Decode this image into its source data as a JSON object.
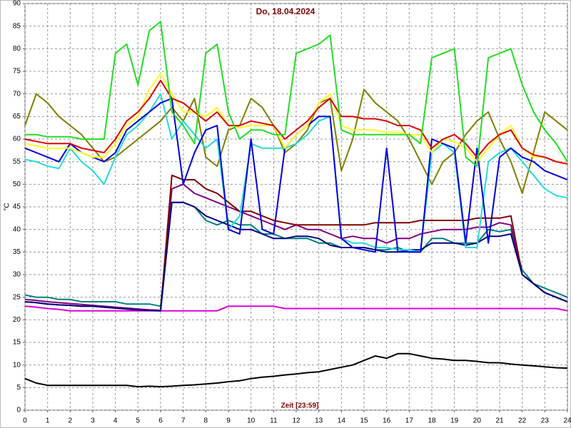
{
  "chart_data": {
    "type": "line",
    "title": "Do, 18.04.2024",
    "x_label": "Zeit [23:59]",
    "y_label": "°C",
    "grid": true,
    "xlim": [
      0,
      24
    ],
    "xticks": [
      0,
      1,
      2,
      3,
      4,
      5,
      6,
      7,
      8,
      9,
      10,
      11,
      12,
      13,
      14,
      15,
      16,
      17,
      18,
      19,
      20,
      21,
      22,
      23,
      24
    ],
    "ylim": [
      0,
      90
    ],
    "yticks": [
      0,
      5,
      10,
      15,
      20,
      25,
      30,
      35,
      40,
      45,
      50,
      55,
      60,
      65,
      70,
      75,
      80,
      85,
      90
    ],
    "x": [
      0,
      0.5,
      1,
      1.5,
      2,
      2.5,
      3,
      3.5,
      4,
      4.5,
      5,
      5.5,
      6,
      6.5,
      7,
      7.5,
      8,
      8.5,
      9,
      9.5,
      10,
      10.5,
      11,
      11.5,
      12,
      12.5,
      13,
      13.5,
      14,
      14.5,
      15,
      15.5,
      16,
      16.5,
      17,
      17.5,
      18,
      18.5,
      19,
      19.5,
      20,
      20.5,
      21,
      21.5,
      22,
      22.5,
      23,
      23.5,
      24
    ],
    "series": [
      {
        "color": "#000000",
        "values": [
          7,
          6,
          5.5,
          5.5,
          5.5,
          5.5,
          5.5,
          5.5,
          5.5,
          5.5,
          5.2,
          5.3,
          5.2,
          5.3,
          5.5,
          5.6,
          5.8,
          6,
          6.3,
          6.5,
          7,
          7.3,
          7.5,
          7.8,
          8,
          8.3,
          8.5,
          9,
          9.5,
          10,
          11,
          12,
          11.5,
          12.5,
          12.5,
          12,
          11.5,
          11.3,
          11,
          11,
          10.8,
          10.5,
          10.5,
          10.2,
          10,
          9.8,
          9.6,
          9.4,
          9.3
        ]
      },
      {
        "color": "#dd00dd",
        "values": [
          23,
          22.8,
          22.5,
          22.3,
          22,
          22,
          22,
          22,
          22,
          22,
          22,
          22,
          22,
          22,
          22,
          22,
          22,
          22,
          23,
          23,
          23,
          23,
          23,
          22.5,
          22.5,
          22.5,
          22.5,
          22.5,
          22.5,
          22.5,
          22.5,
          22.5,
          22.5,
          22.5,
          22.5,
          22.5,
          22.5,
          22.5,
          22.5,
          22.5,
          22.5,
          22.5,
          22.5,
          22.5,
          22.5,
          22.5,
          22.5,
          22.5,
          22
        ]
      },
      {
        "color": "#008080",
        "values": [
          25.5,
          25,
          25,
          24.5,
          24.5,
          24,
          24,
          24,
          24,
          23.5,
          23.5,
          23.5,
          23,
          46,
          46,
          45,
          42,
          41,
          42,
          41,
          41,
          39,
          39,
          38,
          38,
          38,
          37,
          37,
          36,
          36,
          36,
          35.5,
          35.5,
          36,
          35,
          35,
          38,
          38,
          37,
          37,
          37,
          40,
          39.5,
          40,
          31,
          28,
          27,
          26,
          25
        ]
      },
      {
        "color": "#800080",
        "values": [
          24.5,
          24.3,
          24,
          23.8,
          23.6,
          23.4,
          23.2,
          23,
          22.8,
          22.6,
          22.4,
          22.2,
          22.1,
          49,
          50,
          48,
          47,
          46,
          45,
          44,
          43,
          42,
          41,
          40,
          41,
          40,
          40,
          39,
          38,
          38.5,
          38,
          38,
          37,
          38,
          38,
          39,
          39.5,
          40,
          40,
          40,
          40.5,
          40.5,
          41.5,
          41,
          30,
          28,
          26,
          25,
          24
        ]
      },
      {
        "color": "#800000",
        "values": [
          24,
          23.8,
          23.5,
          23.3,
          23.2,
          23,
          23,
          22.8,
          22.6,
          22.4,
          22.2,
          22.1,
          22,
          52,
          51,
          51,
          49,
          48,
          46,
          44,
          44,
          43,
          42,
          41.5,
          41,
          41,
          41,
          41,
          41,
          41,
          41,
          41.5,
          41.5,
          41.5,
          41.5,
          42,
          42,
          42,
          42,
          42,
          42.5,
          42.5,
          42.5,
          43,
          30,
          28,
          26,
          25,
          24
        ]
      },
      {
        "color": "#000080",
        "values": [
          24,
          23.8,
          23.5,
          23.3,
          23.2,
          23,
          23,
          22.8,
          22.6,
          22.4,
          22.2,
          22.1,
          22,
          46,
          46,
          45,
          43,
          42,
          41,
          40,
          40,
          39,
          38,
          38,
          38.5,
          38.5,
          38,
          36.5,
          36,
          36,
          36,
          35.5,
          35,
          35,
          35.5,
          35.5,
          37,
          37,
          37,
          36.5,
          37,
          38.5,
          38.5,
          39,
          30,
          28,
          26,
          25,
          24
        ]
      },
      {
        "color": "#808000",
        "values": [
          63,
          70,
          68,
          65,
          63,
          61,
          58,
          55,
          56,
          58,
          60,
          62,
          64,
          67,
          64,
          69,
          56,
          54,
          62,
          63,
          69,
          67,
          63,
          57,
          59,
          62,
          68,
          69,
          53,
          60,
          71,
          68,
          66,
          64,
          60,
          55,
          50,
          55,
          57,
          61,
          64,
          66,
          60,
          55,
          48,
          57,
          66,
          64,
          62
        ]
      },
      {
        "color": "#22dddd",
        "values": [
          55.5,
          55,
          54,
          53.5,
          58,
          55,
          53,
          50,
          56,
          61,
          63,
          66,
          70,
          60,
          64,
          61,
          58,
          60,
          40,
          43,
          59,
          58,
          58,
          58,
          59,
          61,
          64,
          65,
          38,
          37,
          37,
          36,
          36,
          35.5,
          35.5,
          35,
          57,
          59,
          57,
          36,
          36,
          55,
          57,
          58,
          55,
          52,
          49,
          47.5,
          47
        ]
      },
      {
        "color": "#0000dd",
        "values": [
          58,
          57,
          56,
          55,
          59,
          57,
          56,
          55,
          57,
          62,
          64,
          66,
          68,
          69,
          50,
          57,
          62,
          63,
          40,
          39,
          60,
          40,
          39,
          58,
          61,
          63,
          65,
          65,
          38,
          36,
          35.5,
          35,
          58,
          35,
          35,
          35,
          60,
          59,
          58,
          37,
          58,
          37,
          56,
          58,
          56,
          55,
          53,
          52,
          51
        ]
      },
      {
        "color": "#ffff22",
        "values": [
          59,
          58.5,
          58,
          58,
          58,
          57,
          56,
          56,
          59,
          63,
          65,
          71,
          74.5,
          70,
          66,
          66,
          65,
          67,
          63,
          62.5,
          63,
          63,
          63,
          58,
          61,
          63,
          68,
          70,
          63,
          62,
          62,
          62,
          61.5,
          61.5,
          61,
          61,
          57,
          60,
          59.5,
          58,
          55,
          58,
          61,
          63,
          58,
          56,
          56,
          55,
          54.5
        ]
      },
      {
        "color": "#dd0000",
        "values": [
          60,
          59.5,
          59,
          59,
          59,
          58,
          57.5,
          57,
          60,
          64,
          66,
          69,
          73,
          69,
          68,
          66,
          64,
          66,
          63,
          63,
          64,
          63.5,
          63,
          60,
          62,
          64,
          67,
          69,
          65,
          65,
          64.5,
          64.5,
          64,
          63,
          63,
          62,
          58,
          60,
          61,
          59,
          56,
          59,
          61,
          62,
          58,
          56.5,
          56,
          55,
          54.5
        ]
      },
      {
        "color": "#22dd22",
        "values": [
          61,
          61,
          60.5,
          60.5,
          60.5,
          60,
          60,
          60,
          79,
          81,
          72,
          84,
          86,
          66,
          63,
          59,
          79,
          81,
          66,
          60,
          62,
          62,
          61,
          61,
          79,
          80,
          81,
          83,
          62,
          61,
          61,
          61,
          61,
          61,
          61,
          59,
          78,
          79,
          80,
          56,
          54,
          78,
          79,
          80,
          72,
          66,
          62,
          59,
          55
        ]
      }
    ]
  }
}
